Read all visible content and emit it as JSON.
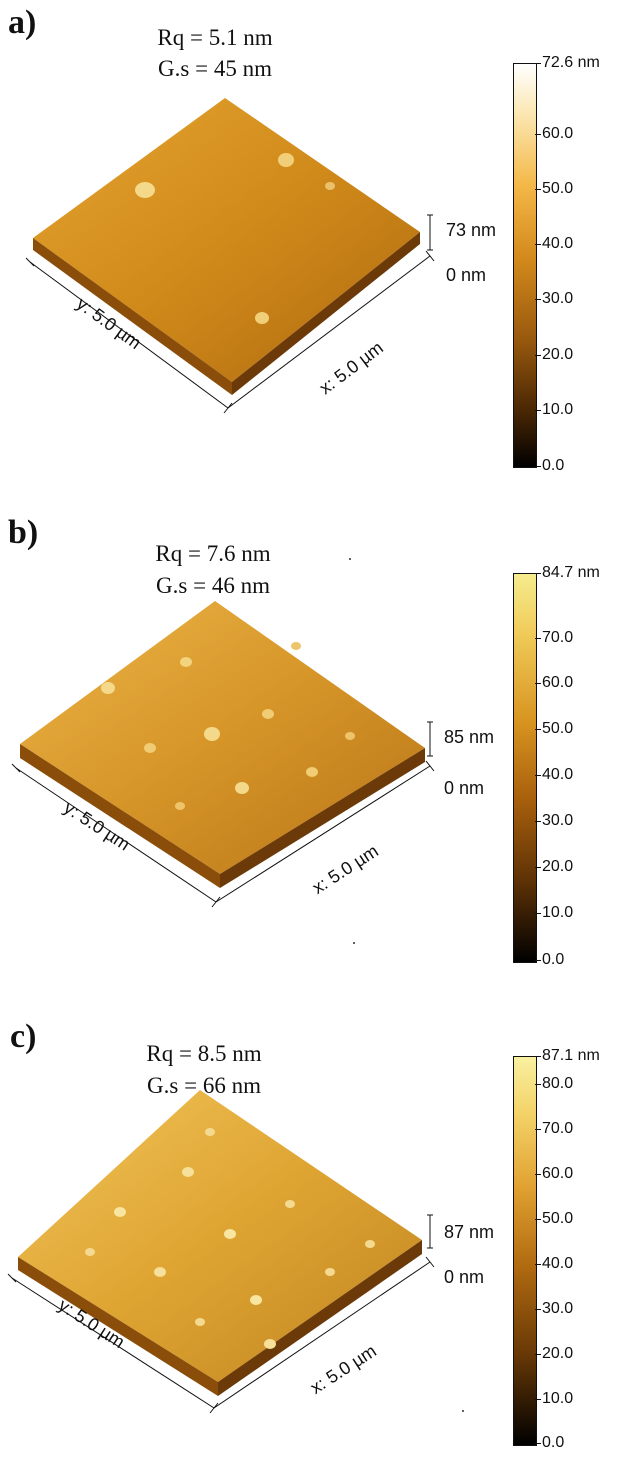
{
  "panels": [
    {
      "label": "a)",
      "rq": "Rq = 5.1 nm",
      "gs": "G.s = 45 nm",
      "z_top": "73 nm",
      "z_bottom": "0 nm",
      "y_axis": "y: 5.0 µm",
      "x_axis": "x: 5.0 µm",
      "colorbar_max": "72.6 nm",
      "colorbar_ticks": [
        "60.0",
        "50.0",
        "40.0",
        "30.0",
        "20.0",
        "10.0",
        "0.0"
      ],
      "surface_color": "#d48f1e"
    },
    {
      "label": "b)",
      "rq": "Rq = 7.6 nm",
      "gs": "G.s = 46 nm",
      "z_top": "85 nm",
      "z_bottom": "0 nm",
      "y_axis": "y: 5.0 µm",
      "x_axis": "x: 5.0 µm",
      "colorbar_max": "84.7 nm",
      "colorbar_ticks": [
        "70.0",
        "60.0",
        "50.0",
        "40.0",
        "30.0",
        "20.0",
        "10.0",
        "0.0"
      ],
      "surface_color": "#dca032"
    },
    {
      "label": "c)",
      "rq": "Rq = 8.5 nm",
      "gs": "G.s = 66 nm",
      "z_top": "87 nm",
      "z_bottom": "0 nm",
      "y_axis": "y: 5.0 µm",
      "x_axis": "x: 5.0 µm",
      "colorbar_max": "87.1 nm",
      "colorbar_ticks": [
        "80.0",
        "70.0",
        "60.0",
        "50.0",
        "40.0",
        "30.0",
        "20.0",
        "10.0",
        "0.0"
      ],
      "surface_color": "#e2ad3e"
    }
  ]
}
